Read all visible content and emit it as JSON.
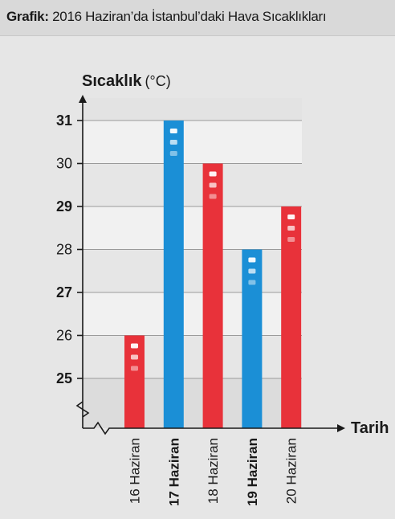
{
  "header": {
    "label": "Grafik:",
    "title": "2016 Haziran’da İstanbul’daki Hava Sıcaklıkları"
  },
  "chart_data": {
    "type": "bar",
    "title": "2016 Haziran’da İstanbul’daki Hava Sıcaklıkları",
    "ylabel_main": "Sıcaklık",
    "ylabel_unit": "(°C)",
    "xlabel": "Tarih",
    "categories": [
      "16 Haziran",
      "17 Haziran",
      "18 Haziran",
      "19 Haziran",
      "20 Haziran"
    ],
    "category_bold": [
      false,
      true,
      false,
      true,
      false
    ],
    "values": [
      26,
      31,
      30,
      28,
      29
    ],
    "bar_colors": [
      "#e8323a",
      "#1b8fd6",
      "#e8323a",
      "#1b8fd6",
      "#e8323a"
    ],
    "yticks": [
      25,
      26,
      27,
      28,
      29,
      30,
      31
    ],
    "ytick_bold": [
      true,
      false,
      true,
      false,
      true,
      false,
      true
    ],
    "ylim": [
      25,
      31
    ],
    "axis_break": true,
    "grid": true
  }
}
